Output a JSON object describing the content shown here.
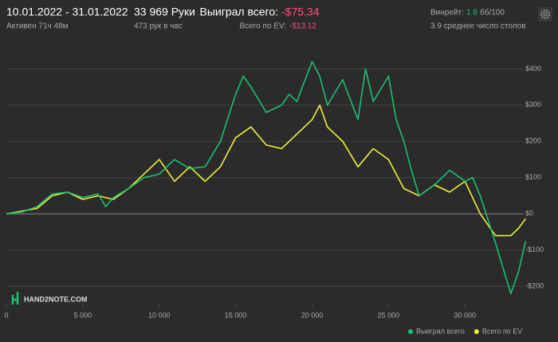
{
  "header": {
    "date_range": "10.01.2022 - 31.01.2022",
    "active": "Активен 71ч 48м",
    "hands": "33 969 Руки",
    "hands_per_hour": "473 рук в час",
    "won_label": "Выиграл всего:",
    "won_value": "-$75.34",
    "ev_label": "Всего по EV:",
    "ev_value": "-$13.12",
    "winrate_label": "Винрейт:",
    "winrate_value": "1.8",
    "winrate_unit": "бб/100",
    "tables": "3.9 среднее число столов",
    "logo": "HAND2NOTE.COM"
  },
  "chart_data": {
    "type": "line",
    "xlim": [
      0,
      34000
    ],
    "ylim": [
      -250,
      480
    ],
    "xticks": [
      0,
      {
        "value": 5000,
        "label": "5 000"
      },
      {
        "value": 10000,
        "label": "10 000"
      },
      {
        "value": 15000,
        "label": "15 000"
      },
      {
        "value": 20000,
        "label": "20 000"
      },
      {
        "value": 25000,
        "label": "25 000"
      },
      {
        "value": 30000,
        "label": "30 000"
      }
    ],
    "yticks": [
      {
        "value": -200,
        "label": "-$200"
      },
      {
        "value": -100,
        "label": "-$100"
      },
      {
        "value": 0,
        "label": "$0"
      },
      {
        "value": 100,
        "label": "$100"
      },
      {
        "value": 200,
        "label": "$200"
      },
      {
        "value": 300,
        "label": "$300"
      },
      {
        "value": 400,
        "label": "$400"
      }
    ],
    "grid": true,
    "legend": "bottom-right",
    "series": [
      {
        "name": "Выиграл всего",
        "color": "#1dbf73",
        "x": [
          0,
          1000,
          2000,
          3000,
          4000,
          5000,
          6000,
          6500,
          7000,
          8000,
          9000,
          10000,
          11000,
          12000,
          13000,
          14000,
          15000,
          15500,
          16000,
          17000,
          18000,
          18500,
          19000,
          20000,
          20500,
          21000,
          22000,
          23000,
          23500,
          24000,
          25000,
          25500,
          26000,
          26500,
          27000,
          28000,
          29000,
          30000,
          30500,
          31000,
          32000,
          33000,
          33500,
          33969
        ],
        "values": [
          0,
          5,
          20,
          55,
          60,
          45,
          55,
          20,
          45,
          70,
          100,
          110,
          150,
          125,
          130,
          200,
          330,
          380,
          350,
          280,
          300,
          330,
          310,
          420,
          380,
          300,
          370,
          260,
          400,
          310,
          380,
          260,
          200,
          120,
          50,
          80,
          120,
          90,
          100,
          50,
          -80,
          -220,
          -160,
          -75.34
        ]
      },
      {
        "name": "Всего по EV",
        "color": "#f0f03c",
        "x": [
          0,
          2000,
          3000,
          4000,
          5000,
          6000,
          7000,
          8000,
          9000,
          10000,
          11000,
          12000,
          13000,
          14000,
          15000,
          16000,
          17000,
          18000,
          19000,
          20000,
          20500,
          21000,
          22000,
          23000,
          24000,
          25000,
          26000,
          27000,
          28000,
          29000,
          30000,
          31000,
          32000,
          33000,
          33500,
          33969
        ],
        "values": [
          0,
          15,
          50,
          60,
          40,
          50,
          40,
          70,
          110,
          150,
          90,
          130,
          90,
          130,
          210,
          240,
          190,
          180,
          220,
          260,
          300,
          240,
          200,
          130,
          180,
          150,
          70,
          50,
          80,
          60,
          90,
          0,
          -60,
          -60,
          -40,
          -13.12
        ]
      }
    ]
  }
}
